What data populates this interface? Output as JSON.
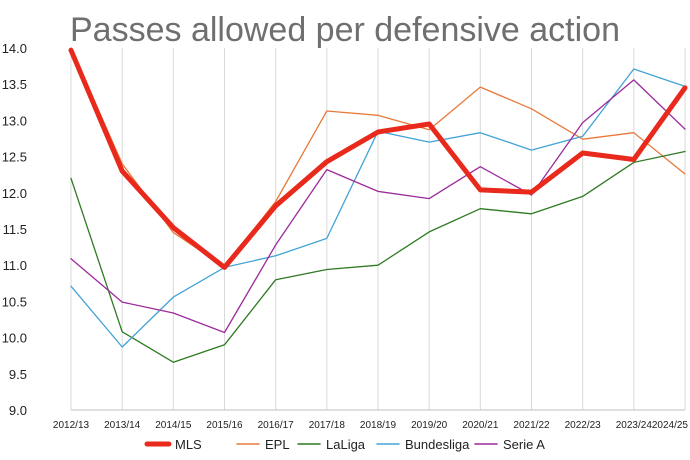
{
  "chart_data": {
    "type": "line",
    "title": "Passes allowed per defensive action",
    "xlabel": "",
    "ylabel": "",
    "categories": [
      "2012/13",
      "2013/14",
      "2014/15",
      "2015/16",
      "2016/17",
      "2017/18",
      "2018/19",
      "2019/20",
      "2020/21",
      "2021/22",
      "2022/23",
      "2023/24",
      "2024/25"
    ],
    "ylim": [
      9.0,
      14.0
    ],
    "yticks": [
      "9.0",
      "9.5",
      "10.0",
      "10.5",
      "11.0",
      "11.5",
      "12.0",
      "12.5",
      "13.0",
      "13.5",
      "14.0"
    ],
    "grid": "vertical",
    "legend_position": "bottom",
    "series": [
      {
        "name": "MLS",
        "color": "#e8291c",
        "values": [
          13.97,
          12.3,
          11.52,
          10.97,
          11.82,
          12.43,
          12.84,
          12.95,
          12.04,
          12.01,
          12.55,
          12.46,
          13.45
        ]
      },
      {
        "name": "EPL",
        "color": "#e97a3a",
        "values": [
          14.0,
          12.4,
          11.45,
          10.98,
          11.88,
          13.13,
          13.07,
          12.87,
          13.46,
          13.16,
          12.74,
          12.83,
          12.26
        ]
      },
      {
        "name": "LaLiga",
        "color": "#2f7a22",
        "values": [
          12.2,
          10.08,
          9.66,
          9.9,
          10.8,
          10.94,
          11.0,
          11.46,
          11.78,
          11.71,
          11.95,
          12.42,
          12.57
        ]
      },
      {
        "name": "Bundesliga",
        "color": "#43a3d6",
        "values": [
          10.71,
          9.87,
          10.56,
          10.97,
          11.13,
          11.37,
          12.85,
          12.7,
          12.83,
          12.59,
          12.78,
          13.71,
          13.47
        ]
      },
      {
        "name": "Serie A",
        "color": "#9c2a9c",
        "values": [
          11.09,
          10.49,
          10.34,
          10.07,
          11.28,
          12.32,
          12.02,
          11.92,
          12.36,
          11.97,
          12.97,
          13.56,
          12.88
        ]
      }
    ]
  }
}
